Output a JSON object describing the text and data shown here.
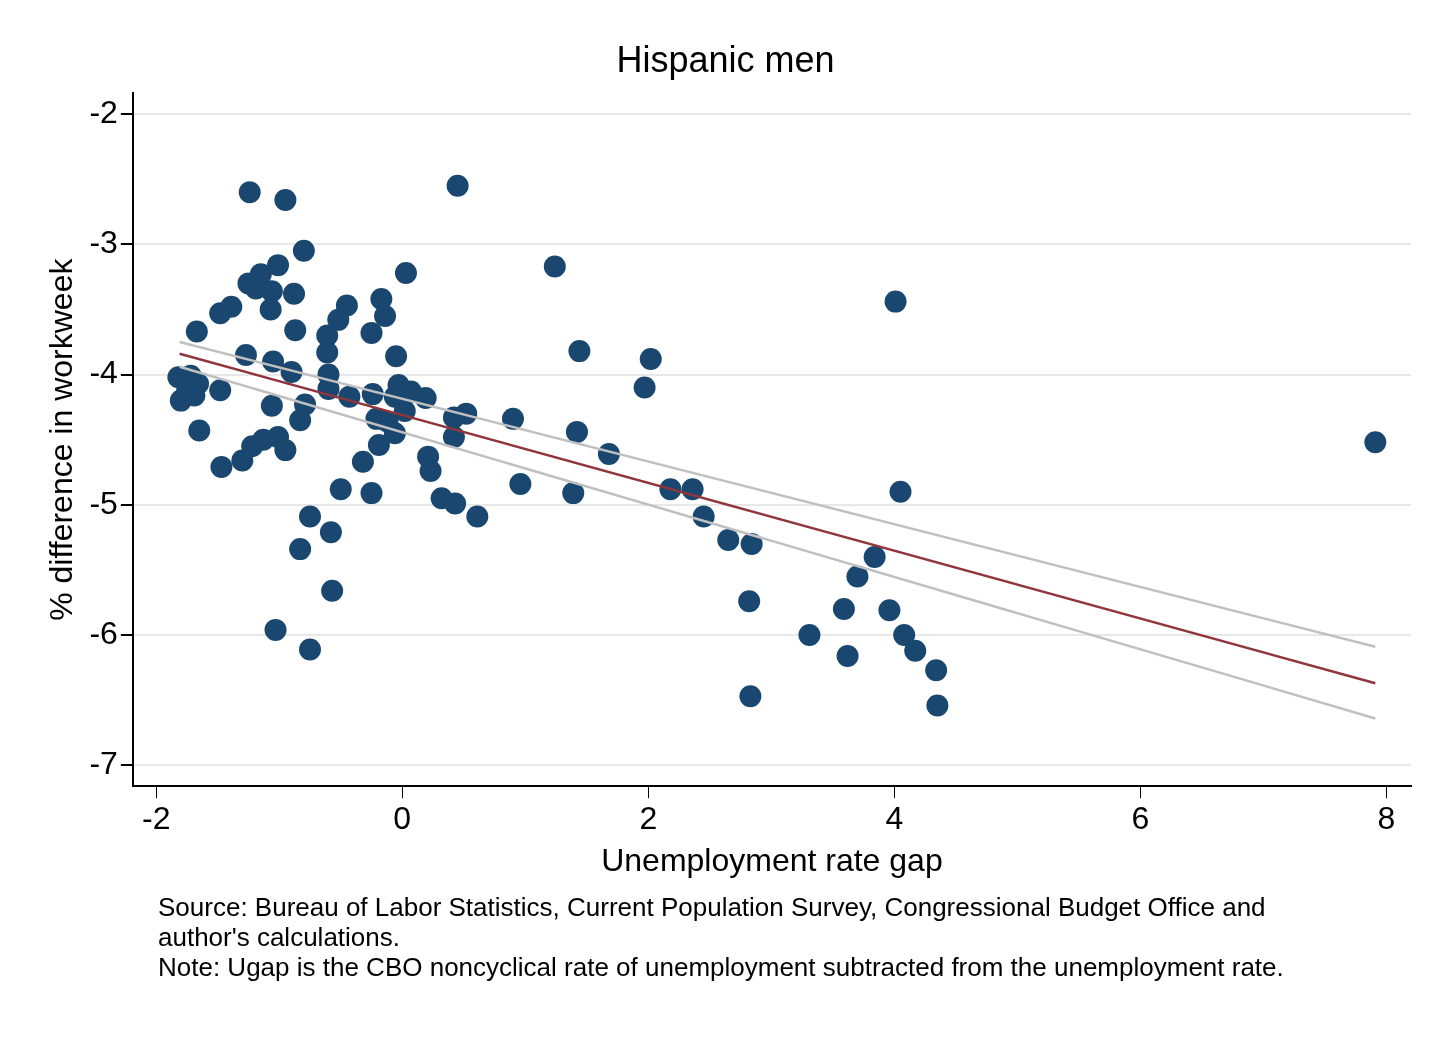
{
  "chart_data": {
    "type": "scatter",
    "title": "Hispanic men",
    "xlabel": "Unemployment rate gap",
    "ylabel": "% difference in workweek",
    "xlim": [
      -2.19,
      8.2
    ],
    "ylim": [
      -7.16,
      -1.84
    ],
    "xticks": [
      -2,
      0,
      2,
      4,
      6,
      8
    ],
    "yticks": [
      -7,
      -6,
      -5,
      -4,
      -3,
      -2
    ],
    "grid": "y",
    "legend": false,
    "marker": "circle",
    "series": [
      {
        "color": "#1a476f",
        "x": [
          -1.24,
          -0.95,
          0.45,
          -0.8,
          0.03,
          1.24,
          4.01,
          -1.01,
          -1.15,
          -1.25,
          -1.19,
          -1.06,
          -0.88,
          -1.07,
          -1.39,
          -1.48,
          -0.45,
          -0.52,
          -0.17,
          -0.14,
          -0.25,
          -0.61,
          -0.87,
          -1.67,
          -0.61,
          -1.27,
          -1.05,
          -0.05,
          1.44,
          2.02,
          1.97,
          -0.6,
          -0.9,
          -1.82,
          -1.72,
          -1.66,
          -1.75,
          -1.8,
          -1.69,
          -1.48,
          -0.6,
          -0.43,
          -0.24,
          -0.03,
          0.07,
          0.19,
          -0.06,
          -1.06,
          -0.79,
          -0.83,
          -0.21,
          -0.12,
          0.02,
          -0.06,
          0.42,
          0.52,
          0.42,
          0.9,
          1.42,
          -1.65,
          -1.01,
          -1.13,
          -1.22,
          -0.95,
          -0.19,
          1.68,
          0.21,
          0.23,
          -0.32,
          -1.3,
          -1.47,
          -0.5,
          -0.25,
          0.32,
          0.43,
          0.96,
          1.39,
          2.18,
          2.36,
          4.05,
          2.45,
          0.61,
          -0.75,
          -0.58,
          -0.83,
          2.65,
          2.84,
          3.84,
          3.7,
          -0.57,
          2.82,
          3.59,
          3.96,
          -1.03,
          3.31,
          4.08,
          4.17,
          -0.75,
          3.62,
          4.34,
          2.83,
          4.35,
          7.91
        ],
        "values": [
          -2.6,
          -2.66,
          -2.55,
          -3.05,
          -3.22,
          -3.17,
          -3.44,
          -3.16,
          -3.23,
          -3.3,
          -3.34,
          -3.36,
          -3.38,
          -3.5,
          -3.48,
          -3.53,
          -3.47,
          -3.58,
          -3.42,
          -3.55,
          -3.68,
          -3.7,
          -3.66,
          -3.67,
          -3.83,
          -3.85,
          -3.9,
          -3.86,
          -3.82,
          -3.88,
          -4.1,
          -4.0,
          -3.98,
          -4.02,
          -4.01,
          -4.07,
          -4.13,
          -4.2,
          -4.16,
          -4.12,
          -4.11,
          -4.17,
          -4.15,
          -4.08,
          -4.13,
          -4.18,
          -4.17,
          -4.24,
          -4.23,
          -4.35,
          -4.34,
          -4.36,
          -4.28,
          -4.45,
          -4.33,
          -4.3,
          -4.48,
          -4.34,
          -4.44,
          -4.43,
          -4.48,
          -4.5,
          -4.55,
          -4.58,
          -4.54,
          -4.61,
          -4.63,
          -4.74,
          -4.67,
          -4.66,
          -4.71,
          -4.88,
          -4.91,
          -4.95,
          -4.99,
          -4.84,
          -4.91,
          -4.88,
          -4.88,
          -4.9,
          -5.09,
          -5.09,
          -5.09,
          -5.21,
          -5.34,
          -5.27,
          -5.3,
          -5.4,
          -5.55,
          -5.66,
          -5.74,
          -5.8,
          -5.81,
          -5.96,
          -6.0,
          -6.0,
          -6.12,
          -6.11,
          -6.16,
          -6.27,
          -6.47,
          -6.54,
          -4.52
        ]
      },
      {
        "type": "line",
        "marker": "none",
        "color": "#c0c0c0",
        "x": [
          -1.81,
          7.91
        ],
        "values": [
          -3.75,
          -6.09
        ]
      },
      {
        "type": "line",
        "marker": "none",
        "color": "#c0c0c0",
        "x": [
          -1.81,
          7.91
        ],
        "values": [
          -3.94,
          -6.64
        ]
      },
      {
        "type": "line",
        "marker": "none",
        "color": "#90353b",
        "x": [
          -1.81,
          7.91
        ],
        "values": [
          -3.84,
          -6.37
        ]
      }
    ],
    "annotations": [
      "Source: Bureau of Labor Statistics, Current Population Survey, Congressional Budget Office and author's calculations.",
      "Note: Ugap is the CBO noncyclical rate of unemployment subtracted from the unemployment rate."
    ]
  }
}
